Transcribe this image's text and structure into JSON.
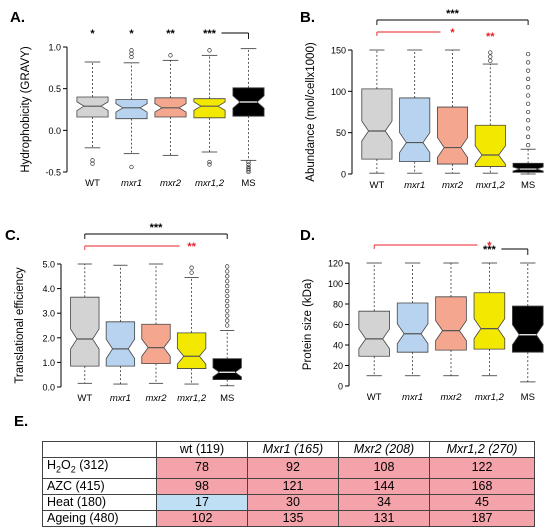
{
  "chart_data": [
    {
      "panel": "A.",
      "type": "boxplot",
      "ylabel": "Hydrophobicity (GRAVY)",
      "ylim": [
        -0.5,
        1.0
      ],
      "yticks": [
        "-0.5",
        "0.0",
        "0.5",
        "1.0"
      ],
      "categories": [
        "WT",
        "mxr1",
        "mxr2",
        "mxr1,2",
        "MS"
      ],
      "italic_categories": [
        false,
        true,
        true,
        true,
        false
      ],
      "boxes": [
        {
          "whislo": -0.21,
          "q1": 0.16,
          "med": 0.29,
          "q3": 0.4,
          "whishi": 0.82,
          "outliers": [
            -0.36,
            -0.4
          ]
        },
        {
          "whislo": -0.28,
          "q1": 0.14,
          "med": 0.27,
          "q3": 0.37,
          "whishi": 0.81,
          "outliers": [
            -0.44,
            0.88,
            0.92,
            0.96
          ]
        },
        {
          "whislo": -0.3,
          "q1": 0.16,
          "med": 0.27,
          "q3": 0.39,
          "whishi": 0.84,
          "outliers": [
            0.9
          ]
        },
        {
          "whislo": -0.26,
          "q1": 0.15,
          "med": 0.29,
          "q3": 0.38,
          "whishi": 0.9,
          "outliers": [
            -0.38,
            -0.41,
            0.96
          ]
        },
        {
          "whislo": -0.36,
          "q1": 0.17,
          "med": 0.34,
          "q3": 0.51,
          "whishi": 0.98,
          "outliers": [
            -0.38,
            -0.41,
            -0.44,
            -0.46,
            -0.48,
            -0.5
          ]
        }
      ],
      "significance": [
        {
          "label": "*",
          "category": 0
        },
        {
          "label": "*",
          "category": 1
        },
        {
          "label": "**",
          "category": 2
        },
        {
          "label": "***",
          "category": 3,
          "bracket_to": 4,
          "color": "#000000"
        }
      ]
    },
    {
      "panel": "B.",
      "type": "boxplot",
      "ylabel": "Abundance (mol/cellx1000)",
      "ylim": [
        0,
        150
      ],
      "yticks": [
        "0",
        "50",
        "100",
        "150"
      ],
      "categories": [
        "WT",
        "mxr1",
        "mxr2",
        "mxr1,2",
        "MS"
      ],
      "italic_categories": [
        false,
        true,
        true,
        true,
        false
      ],
      "boxes": [
        {
          "whislo": 1,
          "q1": 18,
          "med": 52,
          "q3": 103,
          "whishi": 150,
          "outliers": []
        },
        {
          "whislo": 1,
          "q1": 15,
          "med": 38,
          "q3": 92,
          "whishi": 150,
          "outliers": []
        },
        {
          "whislo": 1,
          "q1": 12,
          "med": 32,
          "q3": 81,
          "whishi": 150,
          "outliers": []
        },
        {
          "whislo": 1,
          "q1": 9,
          "med": 23,
          "q3": 59,
          "whishi": 133,
          "outliers": [
            137,
            142,
            147
          ]
        },
        {
          "whislo": 0,
          "q1": 2,
          "med": 6,
          "q3": 13,
          "whishi": 30,
          "outliers": [
            35,
            45,
            55,
            65,
            75,
            85,
            95,
            105,
            115,
            125,
            135,
            145
          ]
        }
      ],
      "significance": [
        {
          "label": "*",
          "category": 2,
          "color": "#e8202a",
          "bracket_from": 0
        },
        {
          "label": "**",
          "category": 3,
          "color": "#e8202a"
        },
        {
          "label": "***",
          "category": 2,
          "bracket_from": 0,
          "bracket_to": 4,
          "color": "#000000",
          "top": true
        }
      ]
    },
    {
      "panel": "C.",
      "type": "boxplot",
      "ylabel": "Translational efficiency",
      "ylim": [
        0,
        5.0
      ],
      "yticks": [
        "0.0",
        "1.0",
        "2.0",
        "3.0",
        "4.0",
        "5.0"
      ],
      "categories": [
        "WT",
        "mxr1",
        "mxr2",
        "mxr1,2",
        "MS"
      ],
      "italic_categories": [
        false,
        true,
        true,
        true,
        false
      ],
      "boxes": [
        {
          "whislo": 0.15,
          "q1": 0.85,
          "med": 1.95,
          "q3": 3.65,
          "whishi": 5.0,
          "outliers": []
        },
        {
          "whislo": 0.12,
          "q1": 0.85,
          "med": 1.55,
          "q3": 2.65,
          "whishi": 4.95,
          "outliers": []
        },
        {
          "whislo": 0.15,
          "q1": 0.95,
          "med": 1.6,
          "q3": 2.55,
          "whishi": 5.0,
          "outliers": []
        },
        {
          "whislo": 0.12,
          "q1": 0.75,
          "med": 1.25,
          "q3": 2.2,
          "whishi": 4.45,
          "outliers": [
            4.65,
            4.85,
            5.05
          ]
        },
        {
          "whislo": 0.05,
          "q1": 0.3,
          "med": 0.6,
          "q3": 1.15,
          "whishi": 2.3,
          "outliers": [
            2.5,
            2.7,
            2.9,
            3.1,
            3.3,
            3.5,
            3.7,
            3.9,
            4.1,
            4.3,
            4.5,
            4.7,
            4.9
          ]
        }
      ],
      "significance": [
        {
          "label": "**",
          "category": 3,
          "color": "#e8202a",
          "bracket_from": 0
        },
        {
          "label": "***",
          "category": 2,
          "bracket_from": 0,
          "bracket_to": 4,
          "color": "#000000",
          "top": true
        }
      ]
    },
    {
      "panel": "D.",
      "type": "boxplot",
      "ylabel": "Protein size (kDa)",
      "ylim": [
        0,
        120
      ],
      "yticks": [
        "0",
        "20",
        "40",
        "60",
        "80",
        "100",
        "120"
      ],
      "categories": [
        "WT",
        "mxr1",
        "mxr2",
        "mxr1,2",
        "MS"
      ],
      "italic_categories": [
        false,
        true,
        true,
        true,
        false
      ],
      "boxes": [
        {
          "whislo": 10,
          "q1": 29,
          "med": 46,
          "q3": 73,
          "whishi": 120,
          "outliers": []
        },
        {
          "whislo": 10,
          "q1": 33,
          "med": 51,
          "q3": 81,
          "whishi": 120,
          "outliers": []
        },
        {
          "whislo": 10,
          "q1": 35,
          "med": 54,
          "q3": 87,
          "whishi": 120,
          "outliers": []
        },
        {
          "whislo": 10,
          "q1": 36,
          "med": 56,
          "q3": 91,
          "whishi": 120,
          "outliers": []
        },
        {
          "whislo": 4,
          "q1": 33,
          "med": 50,
          "q3": 78,
          "whishi": 120,
          "outliers": []
        }
      ],
      "significance": [
        {
          "label": "*",
          "category": 3,
          "color": "#e8202a",
          "bracket_from": 0
        },
        {
          "label": "***",
          "category": 3,
          "bracket_to": 4,
          "color": "#000000"
        }
      ]
    }
  ],
  "box_colors": [
    "#d3d3d3",
    "#b7d3f0",
    "#f4a68f",
    "#f2e800",
    "#000000"
  ],
  "median_colors": [
    "#555555",
    "#555555",
    "#555555",
    "#555555",
    "#ffffff"
  ],
  "table": {
    "panel": "E.",
    "headers": [
      "",
      "wt (119)",
      "Mxr1 (165)",
      "Mxr2 (208)",
      "Mxr1,2 (270)"
    ],
    "header_italic": [
      false,
      false,
      true,
      true,
      true
    ],
    "rows": [
      {
        "label_main": "H",
        "label_sub1": "2",
        "label_mid": "O",
        "label_sub2": "2",
        "label_end": " (312)",
        "values": [
          "78",
          "92",
          "108",
          "122"
        ]
      },
      {
        "label_main": "AZC (415)",
        "label_sub1": "",
        "label_mid": "",
        "label_sub2": "",
        "label_end": "",
        "values": [
          "98",
          "121",
          "144",
          "168"
        ]
      },
      {
        "label_main": "Heat (180)",
        "label_sub1": "",
        "label_mid": "",
        "label_sub2": "",
        "label_end": "",
        "values": [
          "17",
          "30",
          "34",
          "45"
        ]
      },
      {
        "label_main": "Ageing (480)",
        "label_sub1": "",
        "label_mid": "",
        "label_sub2": "",
        "label_end": "",
        "values": [
          "102",
          "135",
          "131",
          "187"
        ]
      }
    ],
    "cell_colors": [
      [
        "#f4a3aa",
        "#f4a3aa",
        "#f4a3aa",
        "#f4a3aa"
      ],
      [
        "#f4a3aa",
        "#f4a3aa",
        "#f4a3aa",
        "#f4a3aa"
      ],
      [
        "#bfe0f4",
        "#f4a3aa",
        "#f4a3aa",
        "#f4a3aa"
      ],
      [
        "#f4a3aa",
        "#f4a3aa",
        "#f4a3aa",
        "#f4a3aa"
      ]
    ]
  }
}
